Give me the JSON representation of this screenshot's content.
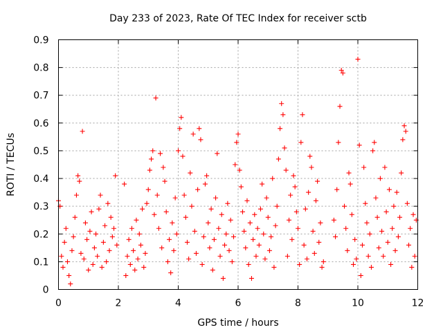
{
  "chart_data": {
    "type": "scatter",
    "title": "Day 233 of 2023, Rate Of TEC Index for receiver sctb",
    "xlabel": "GPS time / hours",
    "ylabel": "ROTI / TECUs",
    "xlim": [
      0,
      12
    ],
    "ylim": [
      0,
      0.9
    ],
    "xticks": [
      "0",
      "2",
      "4",
      "6",
      "8",
      "10",
      "12"
    ],
    "yticks": [
      "0",
      "0.1",
      "0.2",
      "0.3",
      "0.4",
      "0.5",
      "0.6",
      "0.7",
      "0.8",
      "0.9"
    ],
    "grid": true,
    "marker": "plus",
    "series_color": "#ff0000",
    "series": [
      {
        "name": "ROTI",
        "points": [
          [
            0.0,
            0.32
          ],
          [
            0.05,
            0.3
          ],
          [
            0.1,
            0.12
          ],
          [
            0.15,
            0.08
          ],
          [
            0.2,
            0.17
          ],
          [
            0.25,
            0.22
          ],
          [
            0.3,
            0.1
          ],
          [
            0.35,
            0.05
          ],
          [
            0.4,
            0.02
          ],
          [
            0.45,
            0.14
          ],
          [
            0.5,
            0.19
          ],
          [
            0.55,
            0.26
          ],
          [
            0.6,
            0.34
          ],
          [
            0.65,
            0.41
          ],
          [
            0.7,
            0.39
          ],
          [
            0.75,
            0.13
          ],
          [
            0.8,
            0.57
          ],
          [
            0.85,
            0.11
          ],
          [
            0.9,
            0.24
          ],
          [
            0.95,
            0.18
          ],
          [
            1.0,
            0.07
          ],
          [
            1.05,
            0.21
          ],
          [
            1.1,
            0.28
          ],
          [
            1.15,
            0.09
          ],
          [
            1.2,
            0.15
          ],
          [
            1.25,
            0.2
          ],
          [
            1.3,
            0.12
          ],
          [
            1.35,
            0.29
          ],
          [
            1.4,
            0.34
          ],
          [
            1.45,
            0.08
          ],
          [
            1.5,
            0.17
          ],
          [
            1.55,
            0.23
          ],
          [
            1.6,
            0.1
          ],
          [
            1.65,
            0.31
          ],
          [
            1.7,
            0.14
          ],
          [
            1.75,
            0.26
          ],
          [
            1.8,
            0.19
          ],
          [
            1.85,
            0.22
          ],
          [
            1.9,
            0.41
          ],
          [
            1.95,
            0.16
          ],
          [
            2.2,
            0.38
          ],
          [
            2.25,
            0.05
          ],
          [
            2.3,
            0.12
          ],
          [
            2.35,
            0.18
          ],
          [
            2.4,
            0.09
          ],
          [
            2.45,
            0.22
          ],
          [
            2.5,
            0.14
          ],
          [
            2.55,
            0.07
          ],
          [
            2.6,
            0.25
          ],
          [
            2.65,
            0.11
          ],
          [
            2.7,
            0.2
          ],
          [
            2.75,
            0.16
          ],
          [
            2.8,
            0.29
          ],
          [
            2.85,
            0.08
          ],
          [
            2.9,
            0.13
          ],
          [
            2.95,
            0.31
          ],
          [
            3.0,
            0.36
          ],
          [
            3.05,
            0.43
          ],
          [
            3.1,
            0.47
          ],
          [
            3.15,
            0.5
          ],
          [
            3.2,
            0.27
          ],
          [
            3.25,
            0.69
          ],
          [
            3.3,
            0.34
          ],
          [
            3.35,
            0.22
          ],
          [
            3.4,
            0.49
          ],
          [
            3.45,
            0.15
          ],
          [
            3.5,
            0.44
          ],
          [
            3.55,
            0.39
          ],
          [
            3.6,
            0.28
          ],
          [
            3.65,
            0.1
          ],
          [
            3.7,
            0.18
          ],
          [
            3.75,
            0.06
          ],
          [
            3.8,
            0.24
          ],
          [
            3.85,
            0.14
          ],
          [
            3.9,
            0.33
          ],
          [
            3.95,
            0.2
          ],
          [
            4.0,
            0.5
          ],
          [
            4.05,
            0.58
          ],
          [
            4.1,
            0.62
          ],
          [
            4.15,
            0.48
          ],
          [
            4.2,
            0.34
          ],
          [
            4.25,
            0.26
          ],
          [
            4.3,
            0.17
          ],
          [
            4.35,
            0.11
          ],
          [
            4.4,
            0.42
          ],
          [
            4.45,
            0.3
          ],
          [
            4.5,
            0.56
          ],
          [
            4.55,
            0.21
          ],
          [
            4.6,
            0.13
          ],
          [
            4.65,
            0.36
          ],
          [
            4.7,
            0.58
          ],
          [
            4.75,
            0.54
          ],
          [
            4.8,
            0.09
          ],
          [
            4.85,
            0.19
          ],
          [
            4.9,
            0.38
          ],
          [
            4.95,
            0.41
          ],
          [
            5.0,
            0.24
          ],
          [
            5.05,
            0.15
          ],
          [
            5.1,
            0.29
          ],
          [
            5.15,
            0.07
          ],
          [
            5.2,
            0.18
          ],
          [
            5.25,
            0.33
          ],
          [
            5.3,
            0.49
          ],
          [
            5.35,
            0.22
          ],
          [
            5.4,
            0.12
          ],
          [
            5.45,
            0.27
          ],
          [
            5.5,
            0.04
          ],
          [
            5.55,
            0.16
          ],
          [
            5.6,
            0.2
          ],
          [
            5.65,
            0.31
          ],
          [
            5.7,
            0.14
          ],
          [
            5.75,
            0.25
          ],
          [
            5.8,
            0.1
          ],
          [
            5.85,
            0.19
          ],
          [
            5.9,
            0.45
          ],
          [
            5.95,
            0.53
          ],
          [
            6.0,
            0.56
          ],
          [
            6.05,
            0.43
          ],
          [
            6.1,
            0.37
          ],
          [
            6.15,
            0.28
          ],
          [
            6.2,
            0.21
          ],
          [
            6.25,
            0.15
          ],
          [
            6.3,
            0.32
          ],
          [
            6.35,
            0.09
          ],
          [
            6.4,
            0.24
          ],
          [
            6.45,
            0.04
          ],
          [
            6.5,
            0.18
          ],
          [
            6.55,
            0.27
          ],
          [
            6.6,
            0.12
          ],
          [
            6.65,
            0.22
          ],
          [
            6.7,
            0.16
          ],
          [
            6.75,
            0.29
          ],
          [
            6.8,
            0.38
          ],
          [
            6.85,
            0.2
          ],
          [
            6.9,
            0.11
          ],
          [
            6.95,
            0.33
          ],
          [
            7.0,
            0.26
          ],
          [
            7.05,
            0.14
          ],
          [
            7.1,
            0.19
          ],
          [
            7.15,
            0.4
          ],
          [
            7.2,
            0.08
          ],
          [
            7.25,
            0.23
          ],
          [
            7.3,
            0.3
          ],
          [
            7.35,
            0.47
          ],
          [
            7.4,
            0.58
          ],
          [
            7.45,
            0.67
          ],
          [
            7.5,
            0.63
          ],
          [
            7.55,
            0.51
          ],
          [
            7.6,
            0.43
          ],
          [
            7.65,
            0.12
          ],
          [
            7.7,
            0.25
          ],
          [
            7.75,
            0.34
          ],
          [
            7.8,
            0.18
          ],
          [
            7.85,
            0.41
          ],
          [
            7.9,
            0.37
          ],
          [
            7.95,
            0.28
          ],
          [
            8.0,
            0.22
          ],
          [
            8.05,
            0.09
          ],
          [
            8.1,
            0.53
          ],
          [
            8.15,
            0.63
          ],
          [
            8.2,
            0.16
          ],
          [
            8.25,
            0.29
          ],
          [
            8.3,
            0.11
          ],
          [
            8.35,
            0.35
          ],
          [
            8.4,
            0.48
          ],
          [
            8.45,
            0.44
          ],
          [
            8.5,
            0.21
          ],
          [
            8.55,
            0.13
          ],
          [
            8.6,
            0.32
          ],
          [
            8.65,
            0.39
          ],
          [
            8.7,
            0.17
          ],
          [
            8.75,
            0.24
          ],
          [
            8.8,
            0.08
          ],
          [
            8.85,
            0.1
          ],
          [
            9.2,
            0.25
          ],
          [
            9.25,
            0.19
          ],
          [
            9.3,
            0.36
          ],
          [
            9.35,
            0.53
          ],
          [
            9.4,
            0.66
          ],
          [
            9.45,
            0.79
          ],
          [
            9.5,
            0.78
          ],
          [
            9.55,
            0.3
          ],
          [
            9.6,
            0.22
          ],
          [
            9.65,
            0.14
          ],
          [
            9.7,
            0.42
          ],
          [
            9.75,
            0.38
          ],
          [
            9.8,
            0.27
          ],
          [
            9.85,
            0.09
          ],
          [
            9.9,
            0.18
          ],
          [
            9.95,
            0.11
          ],
          [
            10.0,
            0.83
          ],
          [
            10.05,
            0.52
          ],
          [
            10.1,
            0.05
          ],
          [
            10.15,
            0.16
          ],
          [
            10.2,
            0.44
          ],
          [
            10.25,
            0.31
          ],
          [
            10.3,
            0.24
          ],
          [
            10.35,
            0.12
          ],
          [
            10.4,
            0.2
          ],
          [
            10.45,
            0.08
          ],
          [
            10.5,
            0.5
          ],
          [
            10.55,
            0.53
          ],
          [
            10.6,
            0.33
          ],
          [
            10.65,
            0.26
          ],
          [
            10.7,
            0.15
          ],
          [
            10.75,
            0.4
          ],
          [
            10.8,
            0.21
          ],
          [
            10.85,
            0.12
          ],
          [
            10.9,
            0.44
          ],
          [
            10.95,
            0.28
          ],
          [
            11.0,
            0.17
          ],
          [
            11.05,
            0.36
          ],
          [
            11.1,
            0.09
          ],
          [
            11.15,
            0.22
          ],
          [
            11.2,
            0.3
          ],
          [
            11.25,
            0.14
          ],
          [
            11.3,
            0.35
          ],
          [
            11.35,
            0.19
          ],
          [
            11.4,
            0.26
          ],
          [
            11.45,
            0.42
          ],
          [
            11.5,
            0.54
          ],
          [
            11.55,
            0.59
          ],
          [
            11.6,
            0.57
          ],
          [
            11.65,
            0.31
          ],
          [
            11.7,
            0.16
          ],
          [
            11.75,
            0.22
          ],
          [
            11.8,
            0.08
          ],
          [
            11.85,
            0.27
          ],
          [
            11.9,
            0.12
          ],
          [
            11.95,
            0.25
          ]
        ]
      }
    ]
  }
}
